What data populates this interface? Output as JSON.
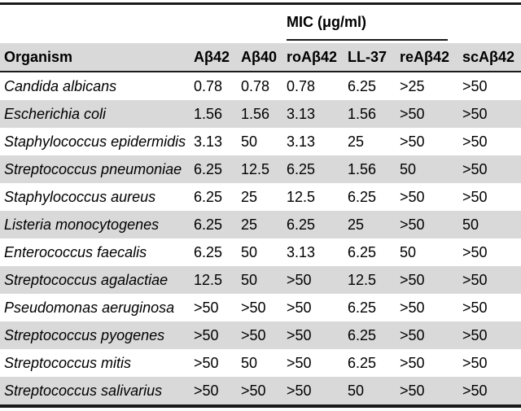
{
  "title_group": {
    "label": "MIC (μg/ml)"
  },
  "table": {
    "columns": [
      "Organism",
      "Aβ42",
      "Aβ40",
      "roAβ42",
      "LL-37",
      "reAβ42",
      "scAβ42"
    ],
    "rows": [
      {
        "organism": "Candida albicans",
        "values": [
          "0.78",
          "0.78",
          "0.78",
          "6.25",
          ">25",
          ">50"
        ]
      },
      {
        "organism": "Escherichia coli",
        "values": [
          "1.56",
          "1.56",
          "3.13",
          "1.56",
          ">50",
          ">50"
        ]
      },
      {
        "organism": "Staphylococcus epidermidis",
        "values": [
          "3.13",
          "50",
          "3.13",
          "25",
          ">50",
          ">50"
        ]
      },
      {
        "organism": "Streptococcus pneumoniae",
        "values": [
          "6.25",
          "12.5",
          "6.25",
          "1.56",
          "50",
          ">50"
        ]
      },
      {
        "organism": "Staphylococcus aureus",
        "values": [
          "6.25",
          "25",
          "12.5",
          "6.25",
          ">50",
          ">50"
        ]
      },
      {
        "organism": "Listeria monocytogenes",
        "values": [
          "6.25",
          "25",
          "6.25",
          "25",
          ">50",
          "50"
        ]
      },
      {
        "organism": "Enterococcus faecalis",
        "values": [
          "6.25",
          "50",
          "3.13",
          "6.25",
          "50",
          ">50"
        ]
      },
      {
        "organism": "Streptococcus agalactiae",
        "values": [
          "12.5",
          "50",
          ">50",
          "12.5",
          ">50",
          ">50"
        ]
      },
      {
        "organism": "Pseudomonas aeruginosa",
        "values": [
          ">50",
          ">50",
          ">50",
          "6.25",
          ">50",
          ">50"
        ]
      },
      {
        "organism": "Streptococcus pyogenes",
        "values": [
          ">50",
          ">50",
          ">50",
          "6.25",
          ">50",
          ">50"
        ]
      },
      {
        "organism": "Streptococcus mitis",
        "values": [
          ">50",
          "50",
          ">50",
          "6.25",
          ">50",
          ">50"
        ]
      },
      {
        "organism": "Streptococcus salivarius",
        "values": [
          ">50",
          ">50",
          ">50",
          "50",
          ">50",
          ">50"
        ]
      }
    ]
  },
  "colors": {
    "row_shade": "#d9d9d9",
    "rule": "#1a1a1a"
  }
}
